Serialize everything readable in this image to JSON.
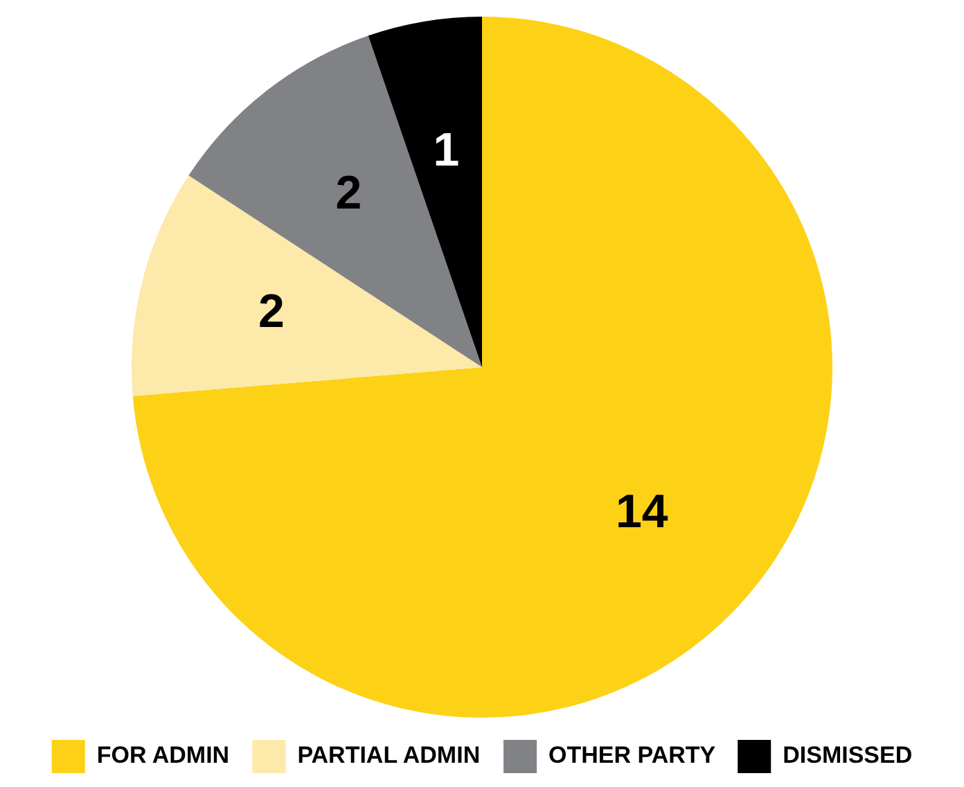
{
  "chart_data": {
    "type": "pie",
    "categories": [
      "FOR ADMIN",
      "PARTIAL ADMIN",
      "OTHER PARTY",
      "DISMISSED"
    ],
    "values": [
      14,
      2,
      2,
      1
    ],
    "colors": [
      "#fdd116",
      "#fde9a9",
      "#808285",
      "#000000"
    ],
    "data_labels": true,
    "legend": "bottom"
  }
}
